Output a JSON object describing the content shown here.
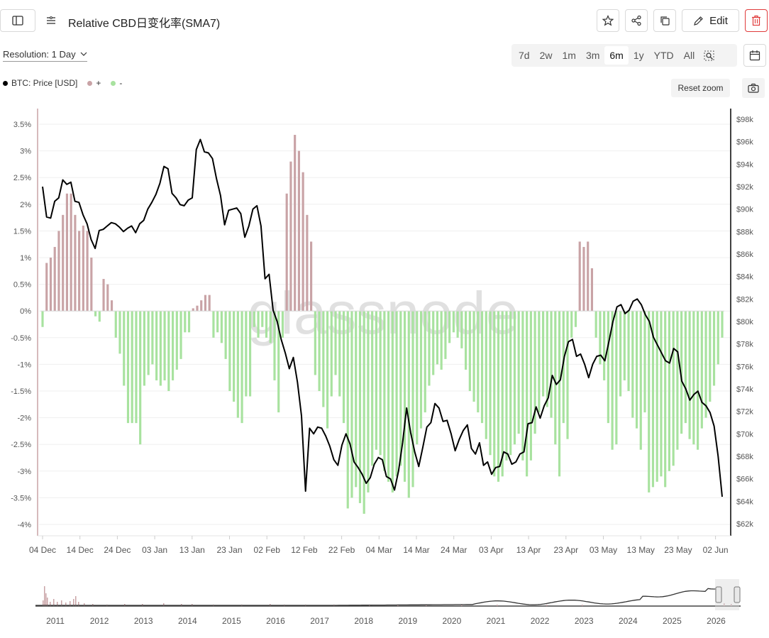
{
  "header": {
    "title": "Relative CBD日变化率(SMA7)",
    "edit_label": "Edit"
  },
  "toolbar": {
    "resolution_label": "Resolution: 1 Day",
    "ranges": [
      "7d",
      "2w",
      "1m",
      "3m",
      "6m",
      "1y",
      "YTD",
      "All"
    ],
    "active_range": "6m",
    "reset_zoom_label": "Reset zoom"
  },
  "icons": {
    "sidebar_toggle": "sidebar-icon",
    "filter": "filter-icon",
    "star": "star-icon",
    "share": "share-icon",
    "copy": "copy-icon",
    "edit": "pencil-icon",
    "delete": "trash-icon",
    "zoom": "zoom-search-icon",
    "calendar": "calendar-icon",
    "camera": "camera-icon"
  },
  "watermark": "glassnode",
  "colors": {
    "positive": "#c9a3a6",
    "negative": "#a8e29f",
    "price": "#000000",
    "delete_accent": "#e03b3b"
  },
  "legend": [
    {
      "name": "BTC: Price [USD]",
      "color": "#000000"
    },
    {
      "name": "+",
      "color": "#c9a3a6"
    },
    {
      "name": "-",
      "color": "#a8e29f"
    }
  ],
  "chart_data": {
    "type": "bar",
    "left_axis_ticks": [
      "3.5%",
      "3%",
      "2.5%",
      "2%",
      "1.5%",
      "1%",
      "0.5%",
      "0%",
      "-0.5%",
      "-1%",
      "-1.5%",
      "-2%",
      "-2.5%",
      "-3%",
      "-3.5%",
      "-4%"
    ],
    "right_axis_ticks": [
      "$98k",
      "$96k",
      "$94k",
      "$92k",
      "$90k",
      "$88k",
      "$86k",
      "$84k",
      "$82k",
      "$80k",
      "$78k",
      "$76k",
      "$74k",
      "$72k",
      "$70k",
      "$68k",
      "$66k",
      "$64k",
      "$62k"
    ],
    "x_ticks": [
      "04 Dec",
      "14 Dec",
      "24 Dec",
      "03 Jan",
      "13 Jan",
      "23 Jan",
      "02 Feb",
      "12 Feb",
      "22 Feb",
      "04 Mar",
      "14 Mar",
      "24 Mar",
      "03 Apr",
      "13 Apr",
      "23 Apr",
      "03 May",
      "13 May",
      "23 May",
      "02 Jun"
    ],
    "navigator_years": [
      "2011",
      "2012",
      "2013",
      "2014",
      "2015",
      "2016",
      "2017",
      "2018",
      "2019",
      "2020",
      "2021",
      "2022",
      "2023",
      "2024",
      "2025",
      "2026"
    ],
    "y_left_range": [
      -4.0,
      3.5
    ],
    "y_right_range": [
      62000,
      98000
    ],
    "grid": true,
    "series": [
      {
        "name": "+ / -",
        "axis": "left",
        "values": [
          -0.3,
          0.9,
          1.0,
          1.2,
          1.5,
          1.8,
          2.2,
          2.2,
          1.8,
          1.5,
          1.6,
          1.5,
          1.0,
          -0.1,
          -0.2,
          0.6,
          0.5,
          0.2,
          -0.5,
          -0.8,
          -1.4,
          -2.1,
          -2.1,
          -2.1,
          -2.5,
          -1.4,
          -1.2,
          -1.0,
          -1.3,
          -1.4,
          -1.3,
          -1.5,
          -1.3,
          -1.1,
          -0.9,
          -0.4,
          -0.4,
          0.05,
          0.1,
          0.2,
          0.3,
          0.3,
          -0.5,
          -0.4,
          -0.6,
          -0.9,
          -1.5,
          -1.7,
          -2.0,
          -2.1,
          -1.6,
          -1.6,
          -0.3,
          -0.5,
          -0.3,
          -0.5,
          -0.6,
          -1.3,
          -1.9,
          -0.5,
          2.2,
          2.8,
          3.3,
          3.0,
          2.6,
          1.8,
          1.3,
          -1.2,
          -1.5,
          -1.8,
          -2.2,
          -1.6,
          -1.2,
          -1.6,
          -2.1,
          -3.7,
          -3.5,
          -3.3,
          -3.6,
          -3.8,
          -3.4,
          -2.9,
          -2.6,
          -2.7,
          -3.0,
          -3.2,
          -3.4,
          -3.1,
          -2.9,
          -3.2,
          -3.5,
          -3.3,
          -2.5,
          -2.2,
          -1.9,
          -1.4,
          -1.2,
          -1.0,
          -1.1,
          -0.9,
          -0.6,
          -0.4,
          -0.5,
          -0.7,
          -1.1,
          -1.5,
          -1.7,
          -1.9,
          -2.1,
          -2.4,
          -2.7,
          -3.1,
          -3.2,
          -3.1,
          -2.8,
          -2.7,
          -2.5,
          -2.3,
          -2.8,
          -3.1,
          -2.8,
          -2.3,
          -1.9,
          -1.6,
          -1.8,
          -2.0,
          -2.5,
          -3.1,
          -2.1,
          -2.4,
          -0.5,
          -0.3,
          1.3,
          1.2,
          1.3,
          0.8,
          -0.5,
          -1.0,
          -1.3,
          -2.1,
          -2.6,
          -2.5,
          -1.6,
          -1.3,
          -1.5,
          -2.0,
          -2.2,
          -2.6,
          -1.9,
          -3.4,
          -3.3,
          -3.2,
          -3.1,
          -3.3,
          -3.0,
          -2.9,
          -2.6,
          -2.3,
          -2.1,
          -2.4,
          -2.5,
          -2.6,
          -2.2,
          -2.0,
          -1.7,
          -1.4,
          -1.0,
          -0.5
        ]
      },
      {
        "name": "BTC: Price [USD]",
        "axis": "right",
        "values": [
          92000,
          89300,
          89200,
          90700,
          91000,
          92600,
          92200,
          92400,
          90700,
          90600,
          89500,
          88700,
          87300,
          86500,
          88100,
          88200,
          88500,
          88800,
          88700,
          88400,
          88000,
          88300,
          88500,
          87900,
          88700,
          89000,
          90000,
          90600,
          91300,
          92300,
          93800,
          93600,
          91400,
          91000,
          90400,
          90300,
          90800,
          91000,
          95300,
          96200,
          95100,
          95000,
          94500,
          92700,
          91200,
          88600,
          89900,
          90000,
          90100,
          89600,
          87500,
          88500,
          90000,
          90300,
          88500,
          83800,
          84200,
          81000,
          80000,
          78400,
          77200,
          75800,
          76800,
          74600,
          71600,
          64900,
          70500,
          70000,
          70600,
          70500,
          69800,
          68900,
          67700,
          67200,
          69000,
          70000,
          69100,
          67500,
          67000,
          66400,
          65600,
          66100,
          67300,
          67900,
          67700,
          66200,
          66000,
          65000,
          66700,
          69200,
          72300,
          70100,
          68400,
          67100,
          68800,
          70600,
          71000,
          72700,
          72300,
          71100,
          71200,
          70000,
          68500,
          69500,
          70300,
          70800,
          68700,
          68200,
          69200,
          67200,
          67500,
          66400,
          67000,
          67100,
          68400,
          68200,
          67300,
          67500,
          68200,
          68400,
          70900,
          71000,
          72400,
          71400,
          72500,
          73200,
          75200,
          74400,
          74800,
          76900,
          78200,
          78400,
          76900,
          77100,
          76200,
          75000,
          76200,
          76900,
          77000,
          76500,
          78200,
          80000,
          81300,
          81500,
          80700,
          81000,
          81800,
          82000,
          81500,
          80600,
          80000,
          78600,
          77900,
          77200,
          76500,
          76300,
          77600,
          77300,
          74700,
          74000,
          73000,
          73500,
          73800,
          72800,
          72500,
          71900,
          70700,
          68000,
          64400
        ]
      }
    ]
  }
}
